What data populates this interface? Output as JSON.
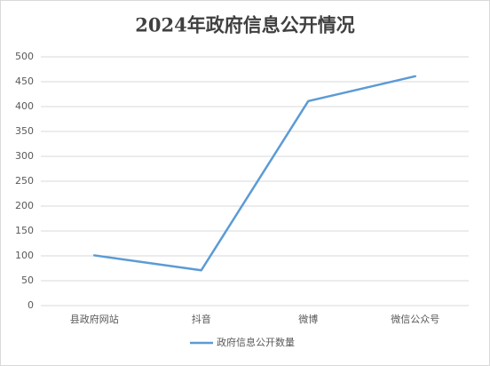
{
  "chart_data": {
    "type": "line",
    "title": "2024年政府信息公开情况",
    "categories": [
      "县政府网站",
      "抖音",
      "微博",
      "微信公众号"
    ],
    "series": [
      {
        "name": "政府信息公开数量",
        "color": "#5b9bd5",
        "values": [
          101,
          71,
          411,
          461
        ]
      }
    ],
    "ylim": [
      0,
      500
    ],
    "yticks": [
      0,
      50,
      100,
      150,
      200,
      250,
      300,
      350,
      400,
      450,
      500
    ],
    "grid": true,
    "legend": "bottom"
  }
}
